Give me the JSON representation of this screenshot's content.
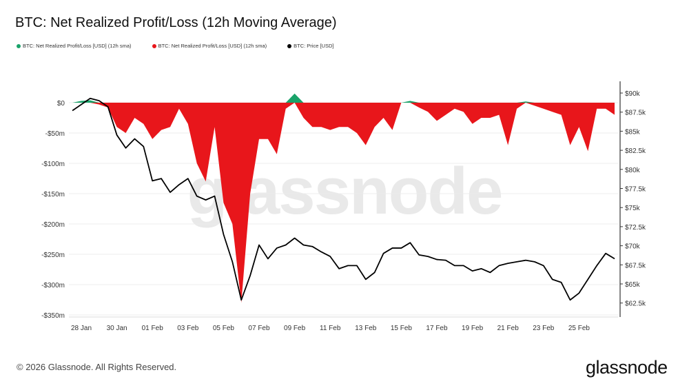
{
  "chart_data": {
    "type": "area",
    "title": "BTC: Net Realized Profit/Loss (12h Moving Average)",
    "legend": [
      {
        "label": "BTC: Net Realized Profit/Loss [USD] (12h sma)",
        "color": "#1aa36a"
      },
      {
        "label": "BTC: Net Realized Profit/Loss [USD] (12h sma)",
        "color": "#e8161b"
      },
      {
        "label": "BTC: Price [USD]",
        "color": "#000000"
      }
    ],
    "legend_placement": "top-left",
    "grid": true,
    "x": [
      "2026-01-27T12:00",
      "2026-01-28T00:00",
      "2026-01-28T12:00",
      "2026-01-29T00:00",
      "2026-01-29T12:00",
      "2026-01-30T00:00",
      "2026-01-30T12:00",
      "2026-01-31T00:00",
      "2026-01-31T12:00",
      "2026-02-01T00:00",
      "2026-02-01T12:00",
      "2026-02-02T00:00",
      "2026-02-02T12:00",
      "2026-02-03T00:00",
      "2026-02-03T12:00",
      "2026-02-04T00:00",
      "2026-02-04T12:00",
      "2026-02-05T00:00",
      "2026-02-05T12:00",
      "2026-02-06T00:00",
      "2026-02-06T12:00",
      "2026-02-07T00:00",
      "2026-02-07T12:00",
      "2026-02-08T00:00",
      "2026-02-08T12:00",
      "2026-02-09T00:00",
      "2026-02-09T12:00",
      "2026-02-10T00:00",
      "2026-02-10T12:00",
      "2026-02-11T00:00",
      "2026-02-11T12:00",
      "2026-02-12T00:00",
      "2026-02-12T12:00",
      "2026-02-13T00:00",
      "2026-02-13T12:00",
      "2026-02-14T00:00",
      "2026-02-14T12:00",
      "2026-02-15T00:00",
      "2026-02-15T12:00",
      "2026-02-16T00:00",
      "2026-02-16T12:00",
      "2026-02-17T00:00",
      "2026-02-17T12:00",
      "2026-02-18T00:00",
      "2026-02-18T12:00",
      "2026-02-19T00:00",
      "2026-02-19T12:00",
      "2026-02-20T00:00",
      "2026-02-20T12:00",
      "2026-02-21T00:00",
      "2026-02-21T12:00",
      "2026-02-22T00:00",
      "2026-02-22T12:00",
      "2026-02-23T00:00",
      "2026-02-23T12:00",
      "2026-02-24T00:00",
      "2026-02-24T12:00",
      "2026-02-25T00:00",
      "2026-02-25T12:00",
      "2026-02-26T00:00",
      "2026-02-26T12:00",
      "2026-02-27T00:00"
    ],
    "series": [
      {
        "name": "BTC: Net Realized Profit/Loss [USD] (12h sma)",
        "axis": "left",
        "unit": "USD millions",
        "positive_color": "#1aa36a",
        "negative_color": "#e8161b",
        "values": [
          0,
          3,
          4,
          -3,
          -8,
          -40,
          -50,
          -25,
          -35,
          -60,
          -45,
          -40,
          -10,
          -35,
          -100,
          -130,
          -40,
          -165,
          -200,
          -330,
          -150,
          -60,
          -60,
          -85,
          -10,
          15,
          -25,
          -40,
          -40,
          -45,
          -40,
          -40,
          -50,
          -70,
          -40,
          -25,
          -45,
          0,
          3,
          -8,
          -15,
          -30,
          -20,
          -10,
          -15,
          -35,
          -25,
          -25,
          -20,
          -70,
          -10,
          2,
          -5,
          -10,
          -15,
          -20,
          -70,
          -40,
          -80,
          -10,
          -10,
          -20
        ]
      },
      {
        "name": "BTC: Price [USD]",
        "axis": "right",
        "unit": "USD thousands",
        "color": "#000000",
        "values": [
          87.7,
          88.5,
          89.3,
          89.0,
          88.2,
          84.5,
          82.8,
          84.0,
          83.0,
          78.5,
          78.8,
          77.0,
          78.0,
          78.8,
          76.5,
          76.0,
          76.5,
          71.5,
          67.9,
          62.9,
          66.1,
          70.1,
          68.3,
          69.7,
          70.1,
          71.0,
          70.1,
          69.9,
          69.2,
          68.6,
          67.0,
          67.4,
          67.4,
          65.6,
          66.5,
          69.0,
          69.7,
          69.7,
          70.4,
          68.8,
          68.6,
          68.2,
          68.1,
          67.4,
          67.4,
          66.7,
          67.0,
          66.5,
          67.4,
          67.7,
          67.9,
          68.1,
          67.9,
          67.4,
          65.6,
          65.2,
          62.9,
          63.8,
          65.6,
          67.4,
          69.0,
          68.3
        ]
      }
    ],
    "left_axis": {
      "ylim": [
        -350,
        0
      ],
      "ticks": [
        0,
        -50,
        -100,
        -150,
        -200,
        -250,
        -300,
        -350
      ],
      "tick_labels": [
        "$0",
        "-$50m",
        "-$100m",
        "-$150m",
        "-$200m",
        "-$250m",
        "-$300m",
        "-$350m"
      ]
    },
    "right_axis": {
      "ylim": [
        62.5,
        90
      ],
      "ticks": [
        90,
        87.5,
        85,
        82.5,
        80,
        77.5,
        75,
        72.5,
        70,
        67.5,
        65,
        62.5
      ],
      "tick_labels": [
        "$90k",
        "$87.5k",
        "$85k",
        "$82.5k",
        "$80k",
        "$77.5k",
        "$75k",
        "$72.5k",
        "$70k",
        "$67.5k",
        "$65k",
        "$62.5k"
      ]
    },
    "x_ticks": [
      "2026-01-28",
      "2026-01-30",
      "2026-02-01",
      "2026-02-03",
      "2026-02-05",
      "2026-02-07",
      "2026-02-09",
      "2026-02-11",
      "2026-02-13",
      "2026-02-15",
      "2026-02-17",
      "2026-02-19",
      "2026-02-21",
      "2026-02-23",
      "2026-02-25"
    ],
    "x_tick_labels": [
      "28 Jan",
      "30 Jan",
      "01 Feb",
      "03 Feb",
      "05 Feb",
      "07 Feb",
      "09 Feb",
      "11 Feb",
      "13 Feb",
      "15 Feb",
      "17 Feb",
      "19 Feb",
      "21 Feb",
      "23 Feb",
      "25 Feb"
    ],
    "watermark": "glassnode"
  },
  "footer": {
    "copyright": "© 2026 Glassnode. All Rights Reserved.",
    "logo": "glassnode"
  }
}
